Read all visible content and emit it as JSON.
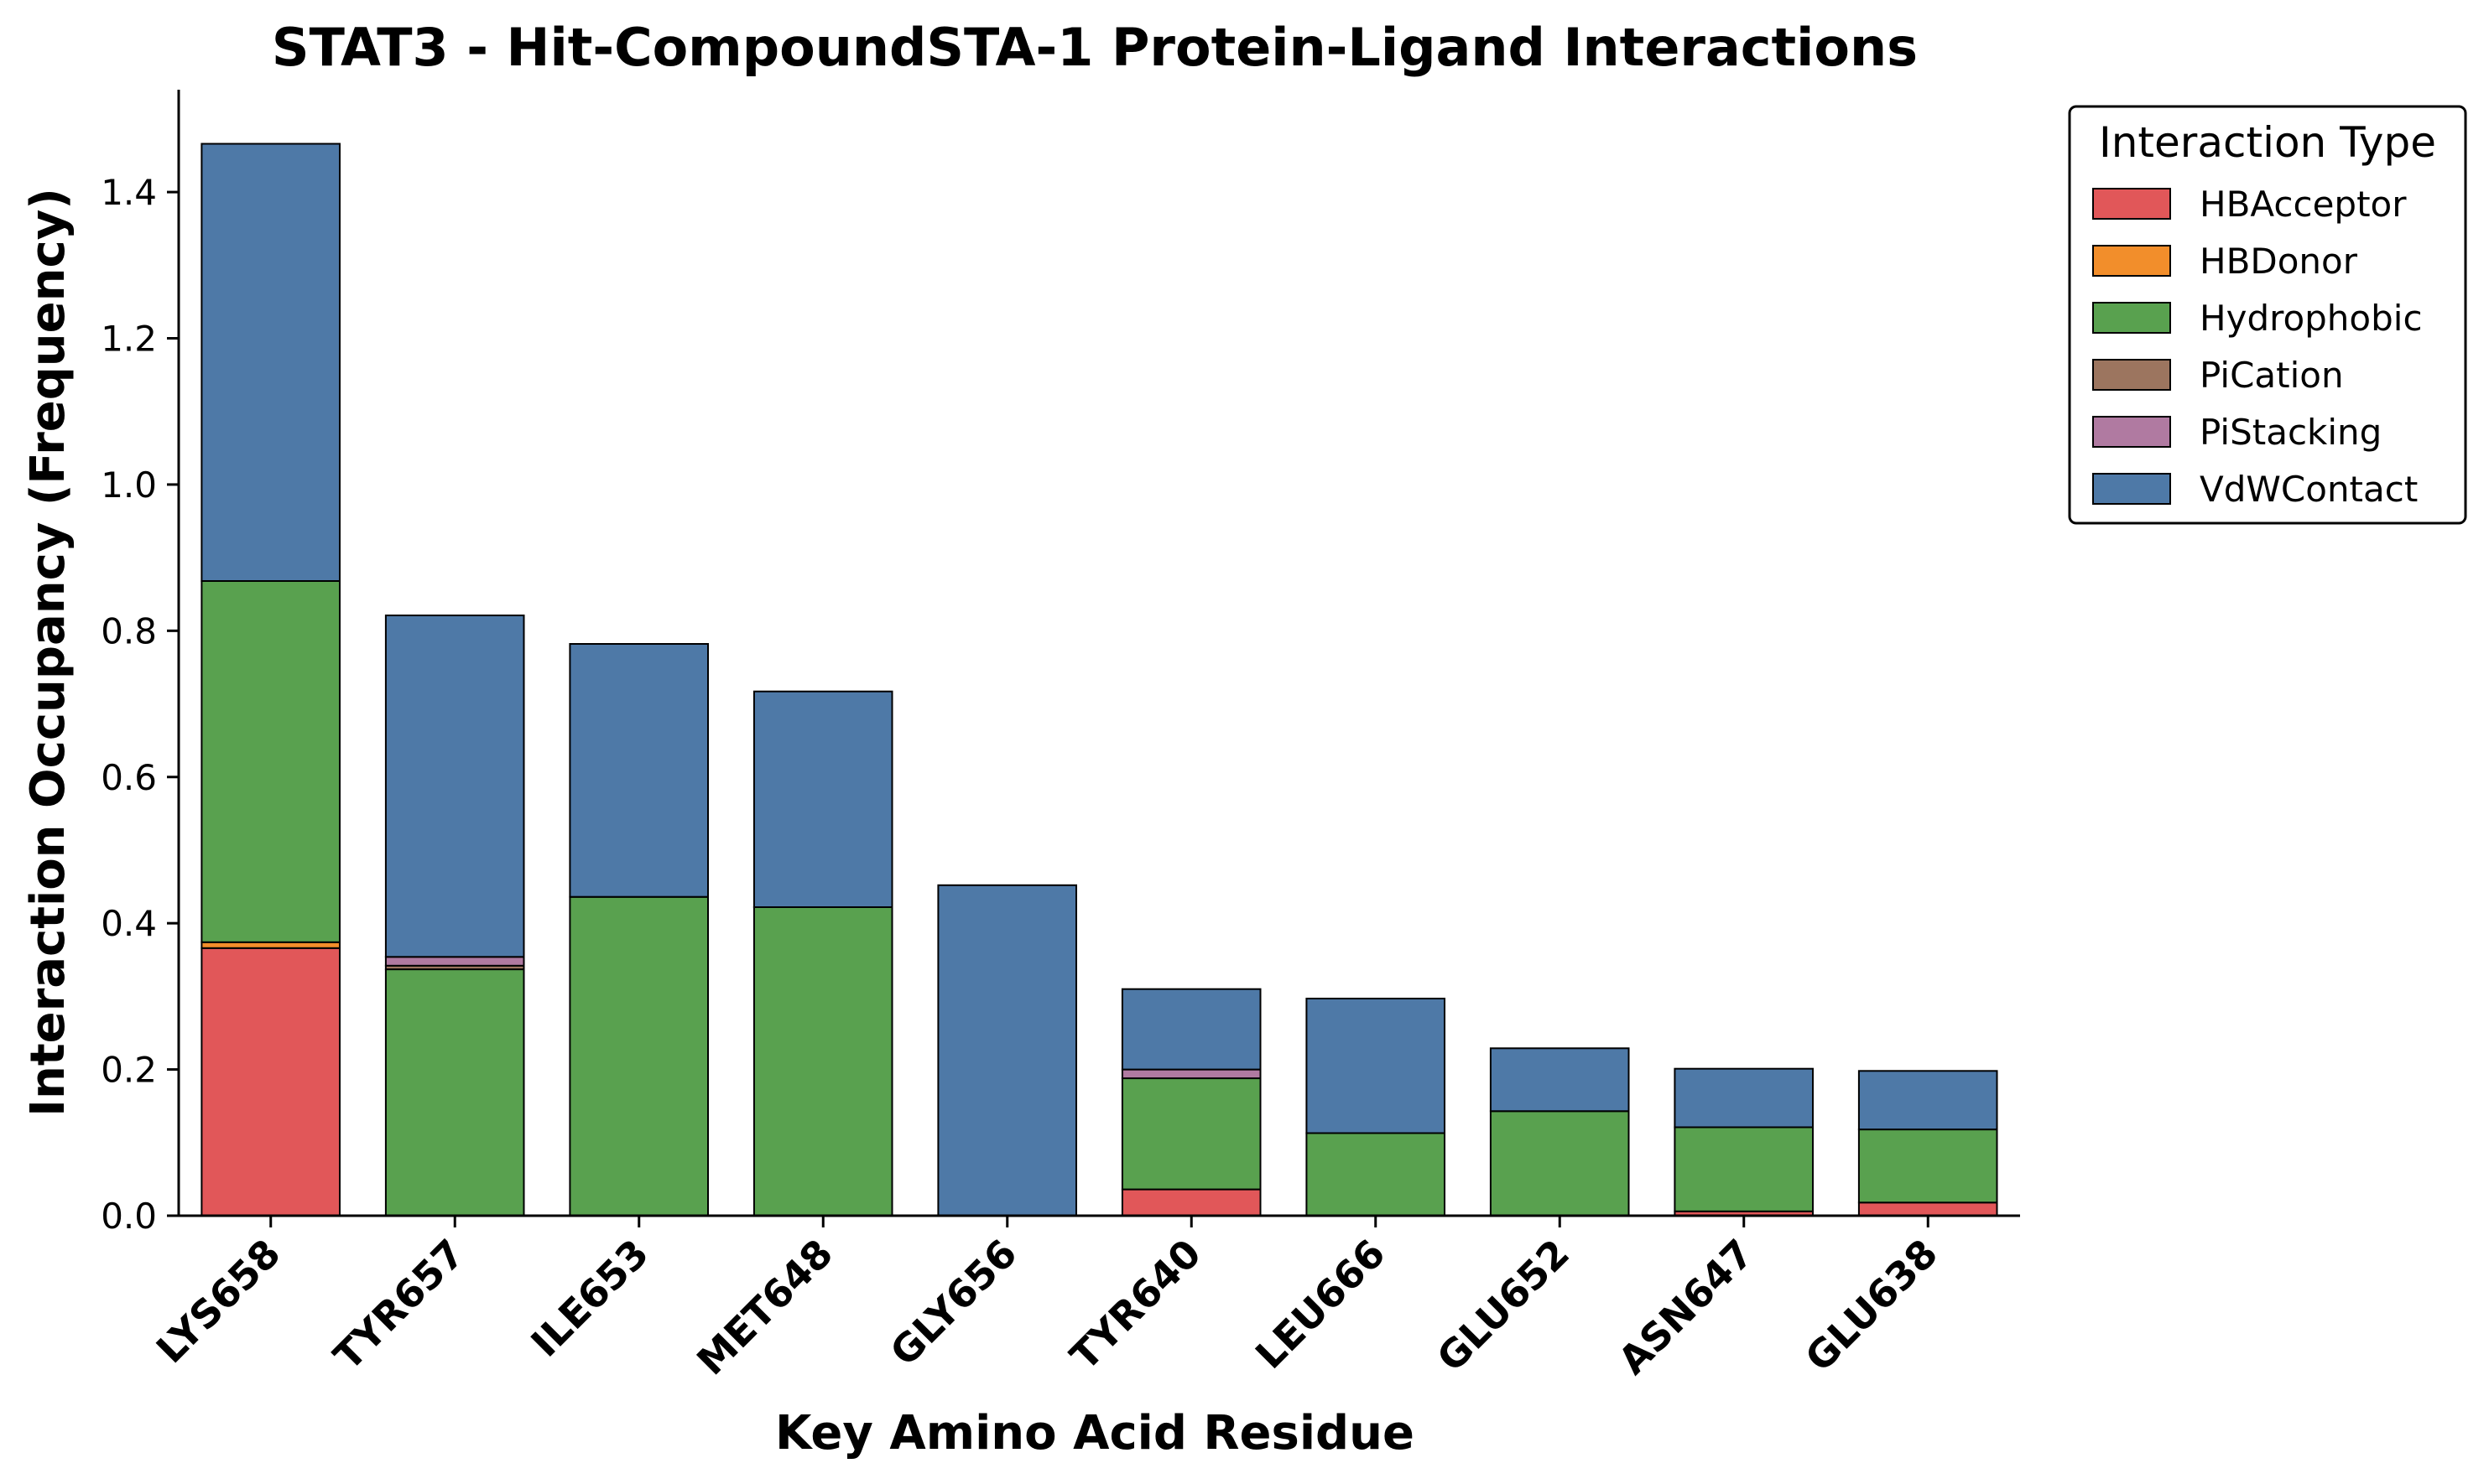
{
  "chart_data": {
    "type": "bar",
    "stacked": true,
    "title": "STAT3 - Hit-CompoundSTA-1 Protein-Ligand Interactions",
    "xlabel": "Key Amino Acid Residue",
    "ylabel": "Interaction Occupancy (Frequency)",
    "ylim": [
      0,
      1.54
    ],
    "yticks": [
      "0.0",
      "0.2",
      "0.4",
      "0.6",
      "0.8",
      "1.0",
      "1.2",
      "1.4"
    ],
    "grid": false,
    "legend": {
      "title": "Interaction Type",
      "placement": "outside-top-right"
    },
    "categories": [
      "LYS658",
      "TYR657",
      "ILE653",
      "MET648",
      "GLY656",
      "TYR640",
      "LEU666",
      "GLU652",
      "ASN647",
      "GLU638"
    ],
    "series": [
      {
        "name": "HBAcceptor",
        "color": "#e15759",
        "values": [
          0.366,
          0.0,
          0.0,
          0.0,
          0.0,
          0.036,
          0.0,
          0.0,
          0.006,
          0.018
        ]
      },
      {
        "name": "HBDonor",
        "color": "#f28e2b",
        "values": [
          0.008,
          0.0,
          0.0,
          0.0,
          0.0,
          0.0,
          0.0,
          0.0,
          0.0,
          0.0
        ]
      },
      {
        "name": "Hydrophobic",
        "color": "#59a14f",
        "values": [
          0.494,
          0.337,
          0.436,
          0.422,
          0.0,
          0.152,
          0.113,
          0.143,
          0.115,
          0.1
        ]
      },
      {
        "name": "PiCation",
        "color": "#9c755f",
        "values": [
          0.0,
          0.005,
          0.0,
          0.0,
          0.0,
          0.0,
          0.0,
          0.0,
          0.0,
          0.0
        ]
      },
      {
        "name": "PiStacking",
        "color": "#b07aa1",
        "values": [
          0.0,
          0.012,
          0.0,
          0.0,
          0.0,
          0.012,
          0.0,
          0.0,
          0.0,
          0.0
        ]
      },
      {
        "name": "VdWContact",
        "color": "#4e79a7",
        "values": [
          0.598,
          0.467,
          0.346,
          0.295,
          0.452,
          0.11,
          0.184,
          0.086,
          0.08,
          0.08
        ]
      }
    ]
  }
}
